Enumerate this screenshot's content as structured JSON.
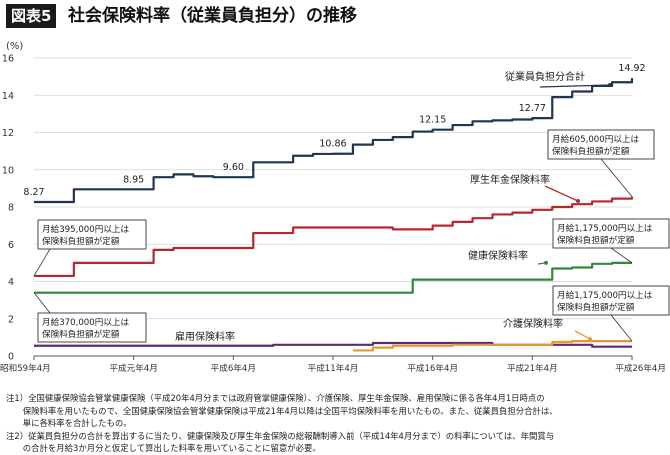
{
  "header": {
    "figure_label": "図表5",
    "title": "社会保険料率（従業員負担分）の推移"
  },
  "chart_data": {
    "type": "line",
    "title": "社会保険料率（従業員負担分）の推移",
    "ylabel": "(%)",
    "ylim": [
      0,
      16
    ],
    "yticks": [
      0,
      2,
      4,
      6,
      8,
      10,
      12,
      14,
      16
    ],
    "xlim": [
      0,
      30
    ],
    "x_ticks": [
      {
        "x": 0,
        "label": "昭和59年4月"
      },
      {
        "x": 5,
        "label": "平成元年4月"
      },
      {
        "x": 10,
        "label": "平成6年4月"
      },
      {
        "x": 15,
        "label": "平成11年4月"
      },
      {
        "x": 20,
        "label": "平成16年4月"
      },
      {
        "x": 25,
        "label": "平成21年4月"
      },
      {
        "x": 30,
        "label": "平成26年4月"
      }
    ],
    "series": [
      {
        "name": "従業員負担分合計",
        "color": "#1f3552",
        "points": [
          [
            0,
            8.27
          ],
          [
            1,
            8.27
          ],
          [
            2,
            8.95
          ],
          [
            3,
            8.95
          ],
          [
            4,
            8.95
          ],
          [
            5,
            8.95
          ],
          [
            6,
            9.6
          ],
          [
            7,
            9.75
          ],
          [
            8,
            9.65
          ],
          [
            9,
            9.6
          ],
          [
            10,
            9.6
          ],
          [
            11,
            10.4
          ],
          [
            12,
            10.4
          ],
          [
            13,
            10.75
          ],
          [
            14,
            10.85
          ],
          [
            15,
            10.86
          ],
          [
            16,
            11.35
          ],
          [
            17,
            11.6
          ],
          [
            18,
            11.75
          ],
          [
            19,
            12.05
          ],
          [
            20,
            12.15
          ],
          [
            21,
            12.4
          ],
          [
            22,
            12.6
          ],
          [
            23,
            12.65
          ],
          [
            24,
            12.7
          ],
          [
            25,
            12.77
          ],
          [
            26,
            13.9
          ],
          [
            27,
            14.2
          ],
          [
            28,
            14.5
          ],
          [
            29,
            14.7
          ],
          [
            30,
            14.92
          ]
        ]
      },
      {
        "name": "厚生年金保険料率",
        "color": "#b8262e",
        "points": [
          [
            0,
            4.3
          ],
          [
            1,
            4.3
          ],
          [
            2,
            5.0
          ],
          [
            3,
            5.0
          ],
          [
            4,
            5.0
          ],
          [
            5,
            5.0
          ],
          [
            6,
            5.7
          ],
          [
            7,
            5.8
          ],
          [
            8,
            5.8
          ],
          [
            9,
            5.8
          ],
          [
            10,
            5.8
          ],
          [
            11,
            6.6
          ],
          [
            12,
            6.6
          ],
          [
            13,
            6.9
          ],
          [
            14,
            6.9
          ],
          [
            15,
            6.9
          ],
          [
            16,
            6.9
          ],
          [
            17,
            6.9
          ],
          [
            18,
            6.8
          ],
          [
            19,
            6.8
          ],
          [
            20,
            7.0
          ],
          [
            21,
            7.2
          ],
          [
            22,
            7.4
          ],
          [
            23,
            7.6
          ],
          [
            24,
            7.7
          ],
          [
            25,
            7.85
          ],
          [
            26,
            8.0
          ],
          [
            27,
            8.15
          ],
          [
            28,
            8.3
          ],
          [
            29,
            8.45
          ],
          [
            30,
            8.56
          ]
        ]
      },
      {
        "name": "健康保険料率",
        "color": "#2f8a3a",
        "points": [
          [
            0,
            3.4
          ],
          [
            1,
            3.4
          ],
          [
            2,
            3.4
          ],
          [
            3,
            3.4
          ],
          [
            4,
            3.4
          ],
          [
            5,
            3.4
          ],
          [
            6,
            3.4
          ],
          [
            7,
            3.4
          ],
          [
            8,
            3.4
          ],
          [
            9,
            3.4
          ],
          [
            10,
            3.4
          ],
          [
            11,
            3.4
          ],
          [
            12,
            3.4
          ],
          [
            13,
            3.4
          ],
          [
            14,
            3.4
          ],
          [
            15,
            3.4
          ],
          [
            16,
            3.4
          ],
          [
            17,
            3.4
          ],
          [
            18,
            3.4
          ],
          [
            19,
            4.1
          ],
          [
            20,
            4.1
          ],
          [
            21,
            4.1
          ],
          [
            22,
            4.1
          ],
          [
            23,
            4.1
          ],
          [
            24,
            4.1
          ],
          [
            25,
            4.1
          ],
          [
            26,
            4.7
          ],
          [
            27,
            4.75
          ],
          [
            28,
            4.95
          ],
          [
            29,
            5.0
          ],
          [
            30,
            5.0
          ]
        ]
      },
      {
        "name": "雇用保険料率",
        "color": "#5a2e6e",
        "points": [
          [
            0,
            0.55
          ],
          [
            1,
            0.55
          ],
          [
            2,
            0.55
          ],
          [
            3,
            0.55
          ],
          [
            4,
            0.55
          ],
          [
            5,
            0.55
          ],
          [
            6,
            0.55
          ],
          [
            7,
            0.55
          ],
          [
            8,
            0.55
          ],
          [
            9,
            0.55
          ],
          [
            10,
            0.55
          ],
          [
            11,
            0.55
          ],
          [
            12,
            0.6
          ],
          [
            13,
            0.6
          ],
          [
            14,
            0.6
          ],
          [
            15,
            0.6
          ],
          [
            16,
            0.6
          ],
          [
            17,
            0.7
          ],
          [
            18,
            0.7
          ],
          [
            19,
            0.7
          ],
          [
            20,
            0.7
          ],
          [
            21,
            0.7
          ],
          [
            22,
            0.7
          ],
          [
            23,
            0.6
          ],
          [
            24,
            0.6
          ],
          [
            25,
            0.6
          ],
          [
            26,
            0.6
          ],
          [
            27,
            0.6
          ],
          [
            28,
            0.5
          ],
          [
            29,
            0.5
          ],
          [
            30,
            0.5
          ]
        ]
      },
      {
        "name": "介護保険料率",
        "color": "#e8962e",
        "points": [
          [
            16,
            0.3
          ],
          [
            17,
            0.45
          ],
          [
            18,
            0.55
          ],
          [
            19,
            0.55
          ],
          [
            20,
            0.55
          ],
          [
            21,
            0.6
          ],
          [
            22,
            0.6
          ],
          [
            23,
            0.6
          ],
          [
            24,
            0.6
          ],
          [
            25,
            0.6
          ],
          [
            26,
            0.75
          ],
          [
            27,
            0.8
          ],
          [
            28,
            0.8
          ],
          [
            29,
            0.8
          ],
          [
            30,
            0.8
          ]
        ]
      }
    ],
    "value_labels": [
      {
        "x": 0,
        "y": 8.27,
        "label": "8.27"
      },
      {
        "x": 5,
        "y": 8.95,
        "label": "8.95"
      },
      {
        "x": 10,
        "y": 9.6,
        "label": "9.60"
      },
      {
        "x": 15,
        "y": 10.86,
        "label": "10.86"
      },
      {
        "x": 20,
        "y": 12.15,
        "label": "12.15"
      },
      {
        "x": 25,
        "y": 12.77,
        "label": "12.77"
      },
      {
        "x": 30,
        "y": 14.92,
        "label": "14.92"
      }
    ],
    "series_labels": [
      {
        "series": 0,
        "text": "従業員負担分合計"
      },
      {
        "series": 1,
        "text": "厚生年金保険料率"
      },
      {
        "series": 2,
        "text": "健康保険料率"
      },
      {
        "series": 3,
        "text": "雇用保険料率"
      },
      {
        "series": 4,
        "text": "介護保険料率"
      }
    ],
    "callouts": [
      {
        "lines": [
          "月給395,000円以上は",
          "保険料負担額が定額"
        ],
        "target_x": 0,
        "target_y": 4.3
      },
      {
        "lines": [
          "月給370,000円以上は",
          "保険料負担額が定額"
        ],
        "target_x": 0,
        "target_y": 3.4
      },
      {
        "lines": [
          "月給605,000円以上は",
          "保険料負担額が定額"
        ],
        "target_x": 30,
        "target_y": 8.56
      },
      {
        "lines": [
          "月給1,175,000円以上は",
          "保険料負担額が定額"
        ],
        "target_x": 30,
        "target_y": 5.0
      },
      {
        "lines": [
          "月給1,175,000円以上は",
          "保険料負担額が定額"
        ],
        "target_x": 30,
        "target_y": 0.8
      }
    ]
  },
  "notes": [
    "注1）全国健康保険協会管掌健康保険（平成20年4月分までは政府管掌健康保険）、介護保険、厚生年金保険、雇用保険に係る各年4月1日時点の",
    "　　保険料率を用いたもので、全国健康保険協会管掌健康保険は平成21年4月以降は全国平均保険料率を用いたもの。また、従業員負担分合計は、",
    "　　単に各料率を合計したもの。",
    "注2）従業員負担分の合計を算出するに当たり、健康保険及び厚生年金保険の総報酬制導入前（平成14年4月分まで）の料率については、年間賞与",
    "　　の合計を月給3か月分と仮定して算出した料率を用いていることに留意が必要。"
  ]
}
